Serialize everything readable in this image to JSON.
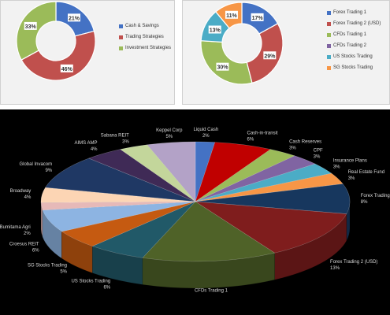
{
  "chart_data": [
    {
      "type": "pie",
      "style": "donut",
      "legend": "right",
      "slices": [
        {
          "label": "Cash & Savings",
          "value": 21,
          "pct_label": "21%",
          "color": "#4472c4"
        },
        {
          "label": "Trading Strategies",
          "value": 46,
          "pct_label": "46%",
          "color": "#c0504d"
        },
        {
          "label": "Investment Strategies",
          "value": 33,
          "pct_label": "33%",
          "color": "#9bbb59"
        }
      ]
    },
    {
      "type": "pie",
      "style": "donut",
      "legend": "right",
      "slices": [
        {
          "label": "Forex Trading 1",
          "value": 17,
          "pct_label": "17%",
          "color": "#4472c4"
        },
        {
          "label": "Forex Trading 2 (USD)",
          "value": 29,
          "pct_label": "29%",
          "color": "#c0504d"
        },
        {
          "label": "CFDs Trading 1",
          "value": 30,
          "pct_label": "30%",
          "color": "#9bbb59"
        },
        {
          "label": "CFDs Trading 2",
          "value": 0,
          "pct_label": "",
          "color": "#8064a2"
        },
        {
          "label": "US Stocks Trading",
          "value": 13,
          "pct_label": "13%",
          "color": "#4bacc6"
        },
        {
          "label": "SG Stocks Trading",
          "value": 11,
          "pct_label": "11%",
          "color": "#f79646"
        }
      ]
    },
    {
      "type": "pie",
      "style": "3d",
      "slices": [
        {
          "label": "Liquid Cash",
          "value": 2,
          "pct_label": "2%",
          "color": "#4472c4"
        },
        {
          "label": "Cash-in-transit",
          "value": 6,
          "pct_label": "6%",
          "color": "#c00000"
        },
        {
          "label": "Cash Reserves",
          "value": 3,
          "pct_label": "3%",
          "color": "#9bbb59"
        },
        {
          "label": "CPF",
          "value": 3,
          "pct_label": "3%",
          "color": "#8064a2"
        },
        {
          "label": "Insurance Plans",
          "value": 3,
          "pct_label": "3%",
          "color": "#4bacc6"
        },
        {
          "label": "Real Estate Fund",
          "value": 3,
          "pct_label": "3%",
          "color": "#f79646"
        },
        {
          "label": "Forex Trading 1",
          "value": 8,
          "pct_label": "8%",
          "color": "#17375e"
        },
        {
          "label": "Forex Trading 2 (USD)",
          "value": 13,
          "pct_label": "13%",
          "color": "#7f1d1d"
        },
        {
          "label": "CFDs Trading 1",
          "value": 14,
          "pct_label": "",
          "color": "#4f6228"
        },
        {
          "label": "US Stocks Trading",
          "value": 6,
          "pct_label": "6%",
          "color": "#215968"
        },
        {
          "label": "SG Stocks Trading",
          "value": 5,
          "pct_label": "5%",
          "color": "#c55a11"
        },
        {
          "label": "Croesus REIT",
          "value": 6,
          "pct_label": "6%",
          "color": "#8db4e2"
        },
        {
          "label": "Bumitama Agri",
          "value": 2,
          "pct_label": "2%",
          "color": "#e6b9b8"
        },
        {
          "label": "Broadway",
          "value": 4,
          "pct_label": "4%",
          "color": "#fcd5b4"
        },
        {
          "label": "Global Invacom",
          "value": 9,
          "pct_label": "9%",
          "color": "#1f3864"
        },
        {
          "label": "AIMS AMP",
          "value": 4,
          "pct_label": "4%",
          "color": "#3f2a56"
        },
        {
          "label": "Sabana REIT",
          "value": 3,
          "pct_label": "3%",
          "color": "#c3d69b"
        },
        {
          "label": "Keppel Corp",
          "value": 5,
          "pct_label": "5%",
          "color": "#b3a2c7"
        }
      ]
    }
  ]
}
